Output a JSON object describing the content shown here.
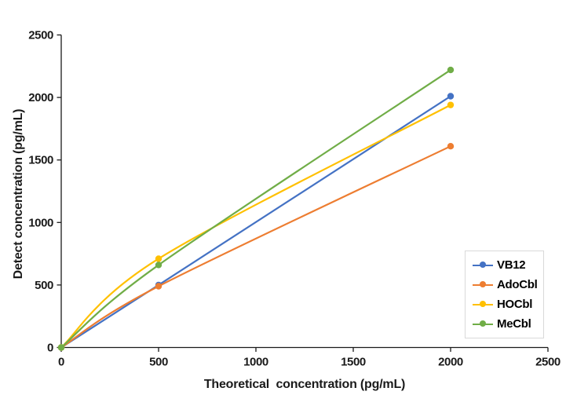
{
  "chart_data": {
    "type": "line",
    "title": "",
    "xlabel": "Theoretical  concentration (pg/mL)",
    "ylabel": "Detect concentration (pg/mL)",
    "x": [
      0,
      500,
      2000
    ],
    "series": [
      {
        "name": "VB12",
        "color": "#4472C4",
        "values": [
          0,
          500,
          2010
        ]
      },
      {
        "name": "AdoCbl",
        "color": "#ED7D31",
        "values": [
          0,
          490,
          1610
        ]
      },
      {
        "name": "HOCbl",
        "color": "#FFC000",
        "values": [
          0,
          710,
          1940
        ]
      },
      {
        "name": "MeCbl",
        "color": "#70AD47",
        "values": [
          0,
          660,
          2220
        ]
      }
    ],
    "xlim": [
      0,
      2500
    ],
    "ylim": [
      0,
      2500
    ],
    "x_ticks": [
      0,
      500,
      1000,
      1500,
      2000,
      2500
    ],
    "y_ticks": [
      0,
      500,
      1000,
      1500,
      2000,
      2500
    ],
    "grid": false,
    "smoothed_lines": true,
    "markers": "circle",
    "legend_position": "right-middle",
    "axis_color": "#1a1a1a",
    "legend_border_color": "#d9d9d9",
    "background_color": "#ffffff"
  }
}
